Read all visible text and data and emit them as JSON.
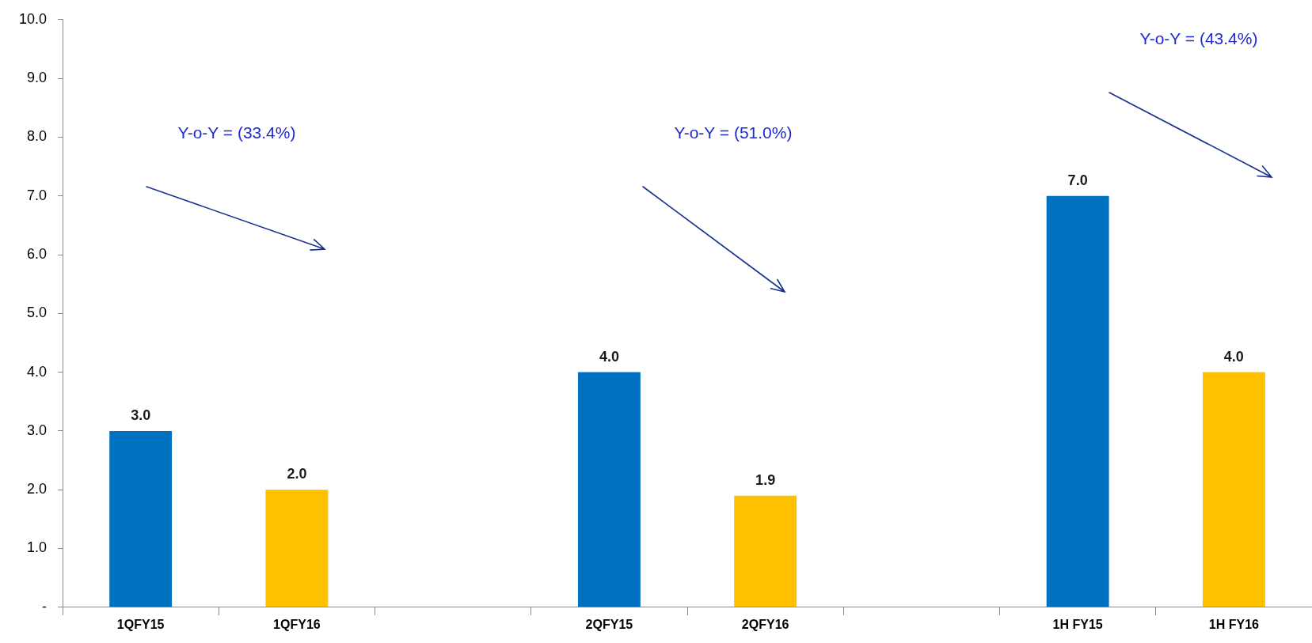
{
  "chart_data": {
    "type": "bar",
    "categories": [
      "1QFY15",
      "1QFY16",
      null,
      "2QFY15",
      "2QFY16",
      null,
      "1H FY15",
      "1H FY16"
    ],
    "values": [
      3.0,
      2.0,
      null,
      4.0,
      1.9,
      null,
      7.0,
      4.0
    ],
    "colors": [
      "#0070c0",
      "#ffc000",
      "#0070c0",
      "#0070c0",
      "#ffc000",
      "#0070c0",
      "#0070c0",
      "#ffc000"
    ],
    "ylim": [
      0,
      10
    ],
    "yticks": [
      {
        "value": 0,
        "label": "-"
      },
      {
        "value": 1,
        "label": "1.0"
      },
      {
        "value": 2,
        "label": "2.0"
      },
      {
        "value": 3,
        "label": "3.0"
      },
      {
        "value": 4,
        "label": "4.0"
      },
      {
        "value": 5,
        "label": "5.0"
      },
      {
        "value": 6,
        "label": "6.0"
      },
      {
        "value": 7,
        "label": "7.0"
      },
      {
        "value": 8,
        "label": "8.0"
      },
      {
        "value": 9,
        "label": "9.0"
      },
      {
        "value": 10,
        "label": "10.0"
      }
    ],
    "value_labels": [
      "3.0",
      "2.0",
      null,
      "4.0",
      "1.9",
      null,
      "7.0",
      "4.0"
    ],
    "grid": false,
    "legend": false,
    "annotations": [
      "Y-o-Y = (33.4%)",
      "Y-o-Y = (51.0%)",
      "Y-o-Y = (43.4%)"
    ]
  }
}
